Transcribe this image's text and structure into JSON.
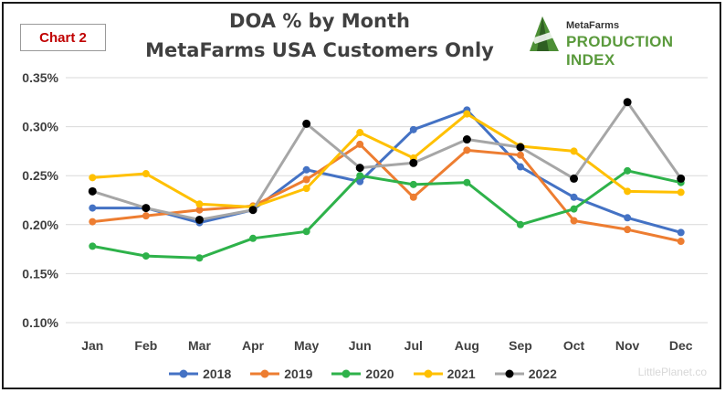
{
  "header": {
    "chart_tag": "Chart 2",
    "title_line1": "DOA % by Month",
    "title_line2": "MetaFarms USA Customers Only"
  },
  "logo": {
    "top_text": "MetaFarms",
    "main_text": "PRODUCTION INDEX",
    "color": "#5a9a3c"
  },
  "watermark": "LittlePlanet.co",
  "chart_data": {
    "type": "line",
    "title": "DOA % by Month\nMetaFarms USA Customers Only",
    "categories": [
      "Jan",
      "Feb",
      "Mar",
      "Apr",
      "May",
      "Jun",
      "Jul",
      "Aug",
      "Sep",
      "Oct",
      "Nov",
      "Dec"
    ],
    "ylim": [
      0.1,
      0.35
    ],
    "yticks": [
      "0.10%",
      "0.15%",
      "0.20%",
      "0.25%",
      "0.30%",
      "0.35%"
    ],
    "ytick_values": [
      0.1,
      0.15,
      0.2,
      0.25,
      0.3,
      0.35
    ],
    "grid": true,
    "legend_position": "bottom",
    "series": [
      {
        "name": "2018",
        "color": "#4472c4",
        "values": [
          0.217,
          0.217,
          0.202,
          0.215,
          0.256,
          0.244,
          0.297,
          0.317,
          0.259,
          0.228,
          0.207,
          0.192
        ]
      },
      {
        "name": "2019",
        "color": "#ed7d31",
        "values": [
          0.203,
          0.209,
          0.215,
          0.219,
          0.246,
          0.282,
          0.228,
          0.276,
          0.271,
          0.204,
          0.195,
          0.183
        ]
      },
      {
        "name": "2020",
        "color": "#2eb24a",
        "values": [
          0.178,
          0.168,
          0.166,
          0.186,
          0.193,
          0.25,
          0.241,
          0.243,
          0.2,
          0.216,
          0.255,
          0.243
        ]
      },
      {
        "name": "2021",
        "color": "#ffc000",
        "values": [
          0.248,
          0.252,
          0.221,
          0.218,
          0.237,
          0.294,
          0.268,
          0.313,
          0.28,
          0.275,
          0.234,
          0.233
        ]
      },
      {
        "name": "2022",
        "color": "#a6a6a6",
        "marker_color": "#000000",
        "values": [
          0.234,
          0.217,
          0.205,
          0.215,
          0.303,
          0.258,
          0.263,
          0.287,
          0.279,
          0.247,
          0.325,
          0.247
        ]
      }
    ]
  }
}
